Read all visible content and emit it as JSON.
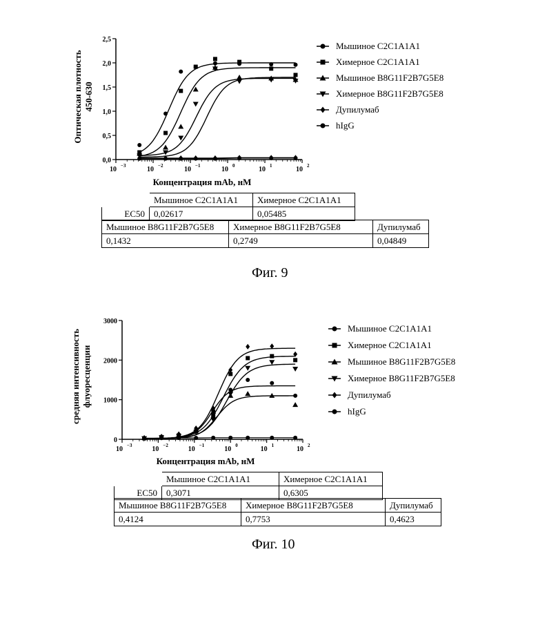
{
  "charts": [
    {
      "chart_data": {
        "type": "scatter",
        "xscale": "log",
        "xlim_exp": [
          -3,
          2
        ],
        "x_tick_exponents": [
          -3,
          -2,
          -1,
          0,
          1,
          2
        ],
        "ylim": [
          0,
          2.5
        ],
        "y_ticks": [
          "0,0",
          "0,5",
          "1,0",
          "1,5",
          "2,0",
          "2,5"
        ],
        "y_tick_values": [
          0,
          0.5,
          1.0,
          1.5,
          2.0,
          2.5
        ],
        "xlabel": "Концентрация mAb, нМ",
        "ylabel_lines": [
          "Оптическая плотность",
          "450-630"
        ],
        "x": [
          0.0043,
          0.0216,
          0.0556,
          0.139,
          0.463,
          2.07,
          14.8,
          66.7
        ],
        "series": [
          {
            "name": "Мышиное C2C1A1A1",
            "marker": "circle",
            "values": [
              0.3,
              0.95,
              1.82,
              1.91,
              1.99,
              1.98,
              1.97,
              1.96
            ],
            "fit": {
              "bottom": 0.05,
              "top": 2.0,
              "ec50": 0.02617,
              "hill": 1.6
            }
          },
          {
            "name": "Химерное C2C1A1A1",
            "marker": "square",
            "values": [
              0.15,
              0.55,
              1.42,
              1.92,
              2.08,
              2.02,
              1.88,
              1.75
            ],
            "fit": {
              "bottom": 0.04,
              "top": 1.9,
              "ec50": 0.05485,
              "hill": 1.6
            }
          },
          {
            "name": "Мышиное B8G11F2B7G5E8",
            "marker": "triangle-up",
            "values": [
              0.12,
              0.25,
              0.68,
              1.45,
              1.9,
              1.7,
              1.68,
              1.65
            ],
            "fit": {
              "bottom": 0.08,
              "top": 1.68,
              "ec50": 0.1432,
              "hill": 1.7
            }
          },
          {
            "name": "Химерное B8G11F2B7G5E8",
            "marker": "triangle-down",
            "values": [
              0.08,
              0.15,
              0.45,
              1.15,
              1.88,
              1.62,
              1.65,
              1.63
            ],
            "fit": {
              "bottom": 0.05,
              "top": 1.7,
              "ec50": 0.2749,
              "hill": 1.7
            }
          },
          {
            "name": "Дупилумаб",
            "marker": "diamond",
            "values": [
              0.03,
              0.03,
              0.03,
              0.03,
              0.03,
              0.04,
              0.04,
              0.04
            ],
            "fit": null
          },
          {
            "name": "hIgG",
            "marker": "circle",
            "values": [
              0.02,
              0.02,
              0.02,
              0.02,
              0.02,
              0.03,
              0.03,
              0.03
            ],
            "fit": null
          }
        ]
      },
      "ec50_table": {
        "row_label": "EC50",
        "row1_headers": [
          "Мышиное C2C1A1A1",
          "Химерное C2C1A1A1"
        ],
        "row1_values": [
          "0,02617",
          "0,05485"
        ],
        "row2_headers": [
          "Мышиное B8G11F2B7G5E8",
          "Химерное B8G11F2B7G5E8",
          "Дупилумаб"
        ],
        "row2_values": [
          "0,1432",
          "0,2749",
          "0,04849"
        ]
      },
      "caption": "Фиг. 9"
    },
    {
      "chart_data": {
        "type": "scatter",
        "xscale": "log",
        "xlim_exp": [
          -3,
          2
        ],
        "x_tick_exponents": [
          -3,
          -2,
          -1,
          0,
          1,
          2
        ],
        "ylim": [
          0,
          3000
        ],
        "y_ticks": [
          "0",
          "1000",
          "2000",
          "3000"
        ],
        "y_tick_values": [
          0,
          1000,
          2000,
          3000
        ],
        "xlabel": "Концентрация mAb, нМ",
        "ylabel_lines": [
          "средняя интенсивность",
          "флуоресценции"
        ],
        "x": [
          0.0041,
          0.0123,
          0.037,
          0.111,
          0.333,
          1.0,
          3.0,
          14.0,
          62.0
        ],
        "series": [
          {
            "name": "Мышиное C2C1A1A1",
            "marker": "circle",
            "values": [
              30,
              60,
              100,
              210,
              720,
              1250,
              1500,
              1420,
              1100
            ],
            "fit": {
              "bottom": 20,
              "top": 1350,
              "ec50": 0.3071,
              "hill": 1.8
            }
          },
          {
            "name": "Химерное C2C1A1A1",
            "marker": "square",
            "values": [
              25,
              55,
              95,
              200,
              600,
              1650,
              2050,
              2100,
              2000
            ],
            "fit": {
              "bottom": 20,
              "top": 2100,
              "ec50": 0.6305,
              "hill": 1.5
            }
          },
          {
            "name": "Мышиное B8G11F2B7G5E8",
            "marker": "triangle-up",
            "values": [
              40,
              60,
              110,
              220,
              700,
              1100,
              1150,
              1100,
              870
            ],
            "fit": {
              "bottom": 20,
              "top": 1100,
              "ec50": 0.4124,
              "hill": 1.8
            }
          },
          {
            "name": "Химерное B8G11F2B7G5E8",
            "marker": "triangle-down",
            "values": [
              25,
              45,
              80,
              180,
              500,
              1150,
              1800,
              1950,
              1780
            ],
            "fit": {
              "bottom": 20,
              "top": 1900,
              "ec50": 0.7753,
              "hill": 1.5
            }
          },
          {
            "name": "Дупилумаб",
            "marker": "diamond",
            "values": [
              35,
              70,
              130,
              280,
              780,
              1750,
              2340,
              2350,
              2150
            ],
            "fit": {
              "bottom": 20,
              "top": 2300,
              "ec50": 0.4623,
              "hill": 1.6
            }
          },
          {
            "name": "hIgG",
            "marker": "circle",
            "values": [
              30,
              30,
              35,
              35,
              40,
              40,
              40,
              40,
              40
            ],
            "fit": null
          }
        ]
      },
      "ec50_table": {
        "row_label": "EC50",
        "row1_headers": [
          "Мышиное C2C1A1A1",
          "Химерное C2C1A1A1"
        ],
        "row1_values": [
          "0,3071",
          "0,6305"
        ],
        "row2_headers": [
          "Мышиное B8G11F2B7G5E8",
          "Химерное B8G11F2B7G5E8",
          "Дупилумаб"
        ],
        "row2_values": [
          "0,4124",
          "0,7753",
          "0,4623"
        ]
      },
      "caption": "Фиг. 10"
    }
  ]
}
